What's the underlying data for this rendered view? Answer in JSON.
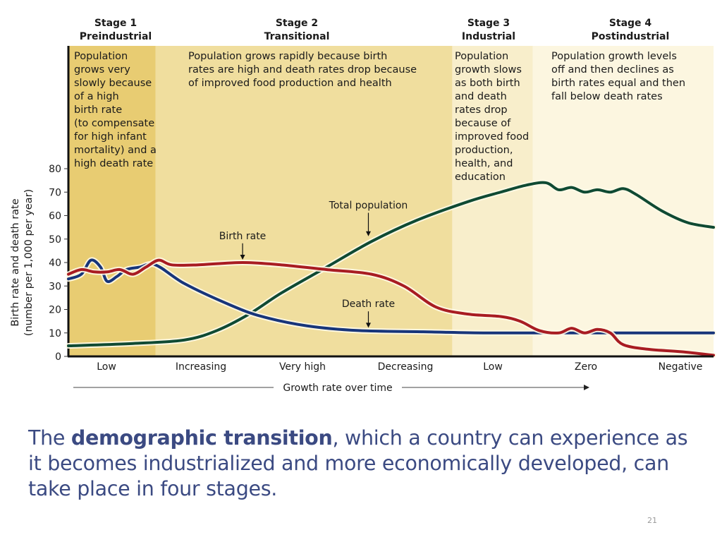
{
  "chart_data": {
    "type": "line",
    "title": "",
    "ylabel_lines": [
      "Birth rate and death rate",
      "(number per 1,000 per year)"
    ],
    "xlabel": "Growth rate over time",
    "ylim": [
      0,
      80
    ],
    "yticks": [
      0,
      10,
      20,
      30,
      40,
      50,
      60,
      70,
      80
    ],
    "x_categories": [
      "Low",
      "Increasing",
      "Very high",
      "Decreasing",
      "Low",
      "Zero",
      "Negative"
    ],
    "stages": [
      {
        "name": "Stage 1",
        "subtitle": "Preindustrial",
        "color": "#e8cc72",
        "description": [
          "Population",
          "grows very",
          "slowly because",
          "of a high",
          "birth rate",
          "(to compensate",
          "for high infant",
          "mortality) and a",
          "high death rate"
        ]
      },
      {
        "name": "Stage 2",
        "subtitle": "Transitional",
        "color": "#f0de9e",
        "description": [
          "Population grows rapidly because birth",
          "rates are high and death rates drop because",
          "of improved food production and health"
        ]
      },
      {
        "name": "Stage 3",
        "subtitle": "Industrial",
        "color": "#f8eecb",
        "description": [
          "Population",
          "growth slows",
          "as both birth",
          "and death",
          "rates drop",
          "because of",
          "improved food",
          "production,",
          "health, and",
          "education"
        ]
      },
      {
        "name": "Stage 4",
        "subtitle": "Postindustrial",
        "color": "#fcf6e0",
        "description": [
          "Population growth levels",
          "off and then declines as",
          "birth rates equal and then",
          "fall below death rates"
        ]
      }
    ],
    "x_range": [
      0,
      100
    ],
    "stage_boundaries": [
      0,
      13.5,
      59.5,
      72,
      100
    ],
    "series": [
      {
        "name": "Birth rate",
        "color": "#a81c22",
        "points": [
          [
            0,
            35
          ],
          [
            2,
            37
          ],
          [
            4,
            36
          ],
          [
            6,
            36
          ],
          [
            8,
            37
          ],
          [
            10,
            35
          ],
          [
            12,
            38
          ],
          [
            14,
            41
          ],
          [
            16,
            39
          ],
          [
            20,
            39
          ],
          [
            27,
            40
          ],
          [
            33,
            39
          ],
          [
            40,
            37
          ],
          [
            47,
            35
          ],
          [
            52,
            30
          ],
          [
            57,
            21
          ],
          [
            62,
            18
          ],
          [
            67,
            17
          ],
          [
            70,
            15
          ],
          [
            73,
            11
          ],
          [
            76,
            10
          ],
          [
            78,
            12
          ],
          [
            80,
            10
          ],
          [
            82,
            11.5
          ],
          [
            84,
            10
          ],
          [
            86,
            5
          ],
          [
            90,
            3
          ],
          [
            95,
            2
          ],
          [
            100,
            0.5
          ]
        ]
      },
      {
        "name": "Death rate",
        "color": "#17357a",
        "points": [
          [
            0,
            33
          ],
          [
            2,
            35
          ],
          [
            3.5,
            41
          ],
          [
            5,
            38
          ],
          [
            6,
            32
          ],
          [
            7.5,
            34
          ],
          [
            9,
            37
          ],
          [
            11,
            38
          ],
          [
            13.5,
            39
          ],
          [
            18,
            31
          ],
          [
            25,
            22
          ],
          [
            30,
            17
          ],
          [
            37,
            13
          ],
          [
            45,
            11
          ],
          [
            55,
            10.5
          ],
          [
            65,
            10
          ],
          [
            80,
            10
          ],
          [
            100,
            10
          ]
        ]
      },
      {
        "name": "Total population",
        "color": "#0f4a33",
        "points": [
          [
            0,
            4.5
          ],
          [
            10,
            5.5
          ],
          [
            18,
            7
          ],
          [
            23,
            11
          ],
          [
            28,
            18
          ],
          [
            33,
            27
          ],
          [
            40,
            38
          ],
          [
            47,
            49
          ],
          [
            54,
            58
          ],
          [
            62,
            66
          ],
          [
            67,
            70
          ],
          [
            71,
            73
          ],
          [
            74,
            74
          ],
          [
            76,
            71
          ],
          [
            78,
            72
          ],
          [
            80,
            70
          ],
          [
            82,
            71
          ],
          [
            84,
            70
          ],
          [
            86,
            71.5
          ],
          [
            88,
            69
          ],
          [
            92,
            62
          ],
          [
            96,
            57
          ],
          [
            100,
            55
          ]
        ]
      }
    ],
    "annotations": [
      {
        "text": "Birth rate",
        "x": 27,
        "y": 50,
        "arrow_to": 40
      },
      {
        "text": "Total population",
        "x": 46.5,
        "y": 63,
        "arrow_to": 50
      },
      {
        "text": "Death rate",
        "x": 46.5,
        "y": 21,
        "arrow_to": 11
      }
    ],
    "grid": false,
    "legend": "none"
  },
  "caption": {
    "prefix": "The ",
    "bold": "demographic transition",
    "suffix": ", which a country can experience as it becomes industrialized and more economically developed, can take place in four stages."
  },
  "page_number": "21"
}
